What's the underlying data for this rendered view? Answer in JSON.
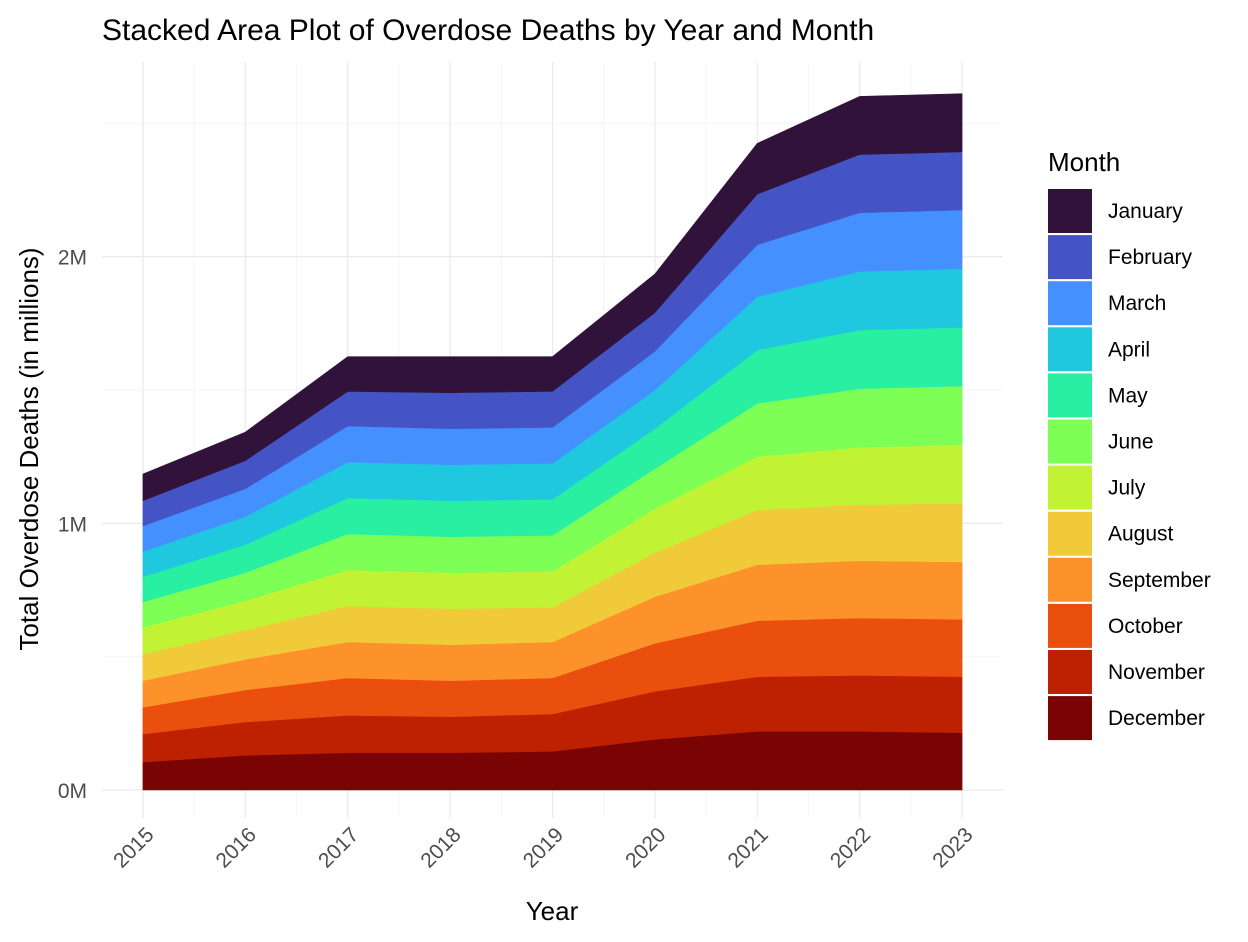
{
  "chart_data": {
    "type": "area",
    "stacked": true,
    "title": "Stacked Area Plot of Overdose Deaths by Year and Month",
    "xlabel": "Year",
    "ylabel": "Total Overdose Deaths (in millions)",
    "x": [
      2015,
      2016,
      2017,
      2018,
      2019,
      2020,
      2021,
      2022,
      2023
    ],
    "x_tick_labels": [
      "2015",
      "2016",
      "2017",
      "2018",
      "2019",
      "2020",
      "2021",
      "2022",
      "2023"
    ],
    "y_ticks": [
      0,
      1000000,
      2000000
    ],
    "y_tick_labels": [
      "0M",
      "1M",
      "2M"
    ],
    "ylim": [
      -105000,
      2730000
    ],
    "xlim": [
      2014.6,
      2023.4
    ],
    "grid": true,
    "legend": {
      "title": "Month",
      "placement": "right"
    },
    "series": [
      {
        "name": "January",
        "color": "#30123B",
        "values": [
          100000,
          107000,
          130000,
          135000,
          130000,
          145000,
          190000,
          218000,
          218000
        ]
      },
      {
        "name": "February",
        "color": "#4454C4",
        "values": [
          95000,
          105000,
          130000,
          135000,
          135000,
          145000,
          190000,
          218000,
          218000
        ]
      },
      {
        "name": "March",
        "color": "#4490FE",
        "values": [
          95000,
          105000,
          135000,
          135000,
          135000,
          145000,
          195000,
          220000,
          220000
        ]
      },
      {
        "name": "April",
        "color": "#1FC8DE",
        "values": [
          95000,
          105000,
          135000,
          135000,
          135000,
          145000,
          200000,
          220000,
          220000
        ]
      },
      {
        "name": "May",
        "color": "#29EFA2",
        "values": [
          95000,
          105000,
          135000,
          135000,
          135000,
          150000,
          200000,
          220000,
          220000
        ]
      },
      {
        "name": "June",
        "color": "#7DFF56",
        "values": [
          95000,
          105000,
          135000,
          135000,
          135000,
          150000,
          200000,
          220000,
          220000
        ]
      },
      {
        "name": "July",
        "color": "#C1F334",
        "values": [
          100000,
          110000,
          135000,
          135000,
          135000,
          165000,
          200000,
          215000,
          220000
        ]
      },
      {
        "name": "August",
        "color": "#F1CA3A",
        "values": [
          100000,
          110000,
          135000,
          135000,
          130000,
          165000,
          205000,
          210000,
          220000
        ]
      },
      {
        "name": "September",
        "color": "#FE922A",
        "values": [
          100000,
          115000,
          135000,
          135000,
          135000,
          175000,
          210000,
          215000,
          215000
        ]
      },
      {
        "name": "October",
        "color": "#EA4F0D",
        "values": [
          100000,
          120000,
          140000,
          135000,
          135000,
          180000,
          210000,
          215000,
          215000
        ]
      },
      {
        "name": "November",
        "color": "#BE2102",
        "values": [
          105000,
          125000,
          140000,
          135000,
          140000,
          180000,
          205000,
          210000,
          210000
        ]
      },
      {
        "name": "December",
        "color": "#7A0403",
        "values": [
          105000,
          130000,
          140000,
          140000,
          145000,
          190000,
          220000,
          220000,
          215000
        ]
      }
    ]
  }
}
